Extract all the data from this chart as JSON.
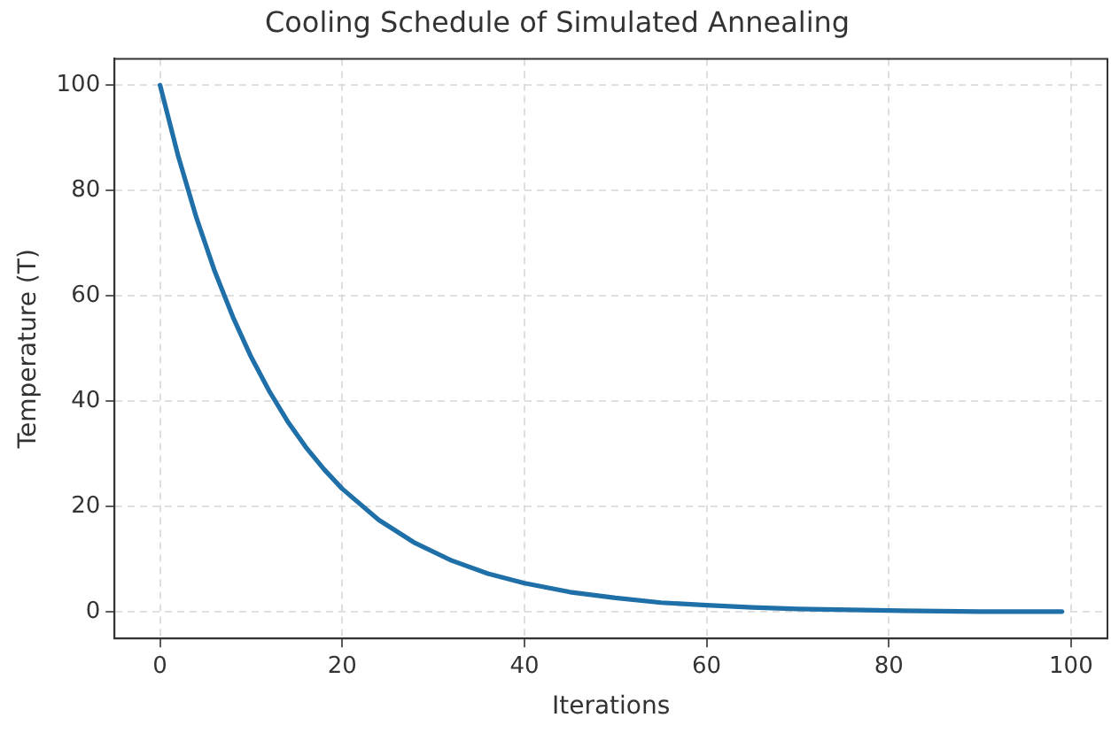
{
  "chart_data": {
    "type": "line",
    "title": "Cooling Schedule of Simulated Annealing",
    "xlabel": "Iterations",
    "ylabel": "Temperature (T)",
    "x": [
      0,
      2,
      4,
      6,
      8,
      10,
      12,
      14,
      16,
      18,
      20,
      24,
      28,
      32,
      36,
      40,
      45,
      50,
      55,
      60,
      65,
      70,
      80,
      90,
      99
    ],
    "series": [
      {
        "color": "#1f6fa8",
        "values": [
          100,
          86.5,
          74.8,
          64.7,
          56,
          48.4,
          41.9,
          36.2,
          31.3,
          27.1,
          23.4,
          17.5,
          13.1,
          9.8,
          7.3,
          5.5,
          3.8,
          2.7,
          1.8,
          1.3,
          0.9,
          0.6,
          0.3,
          0.1,
          0.1
        ]
      }
    ],
    "xlim": [
      -5,
      104
    ],
    "ylim": [
      -5,
      105
    ],
    "xticks": [
      0,
      20,
      40,
      60,
      80,
      100
    ],
    "yticks": [
      0,
      20,
      40,
      60,
      80,
      100
    ],
    "grid": true,
    "legend": false,
    "marker": "none",
    "line_style": "solid"
  }
}
